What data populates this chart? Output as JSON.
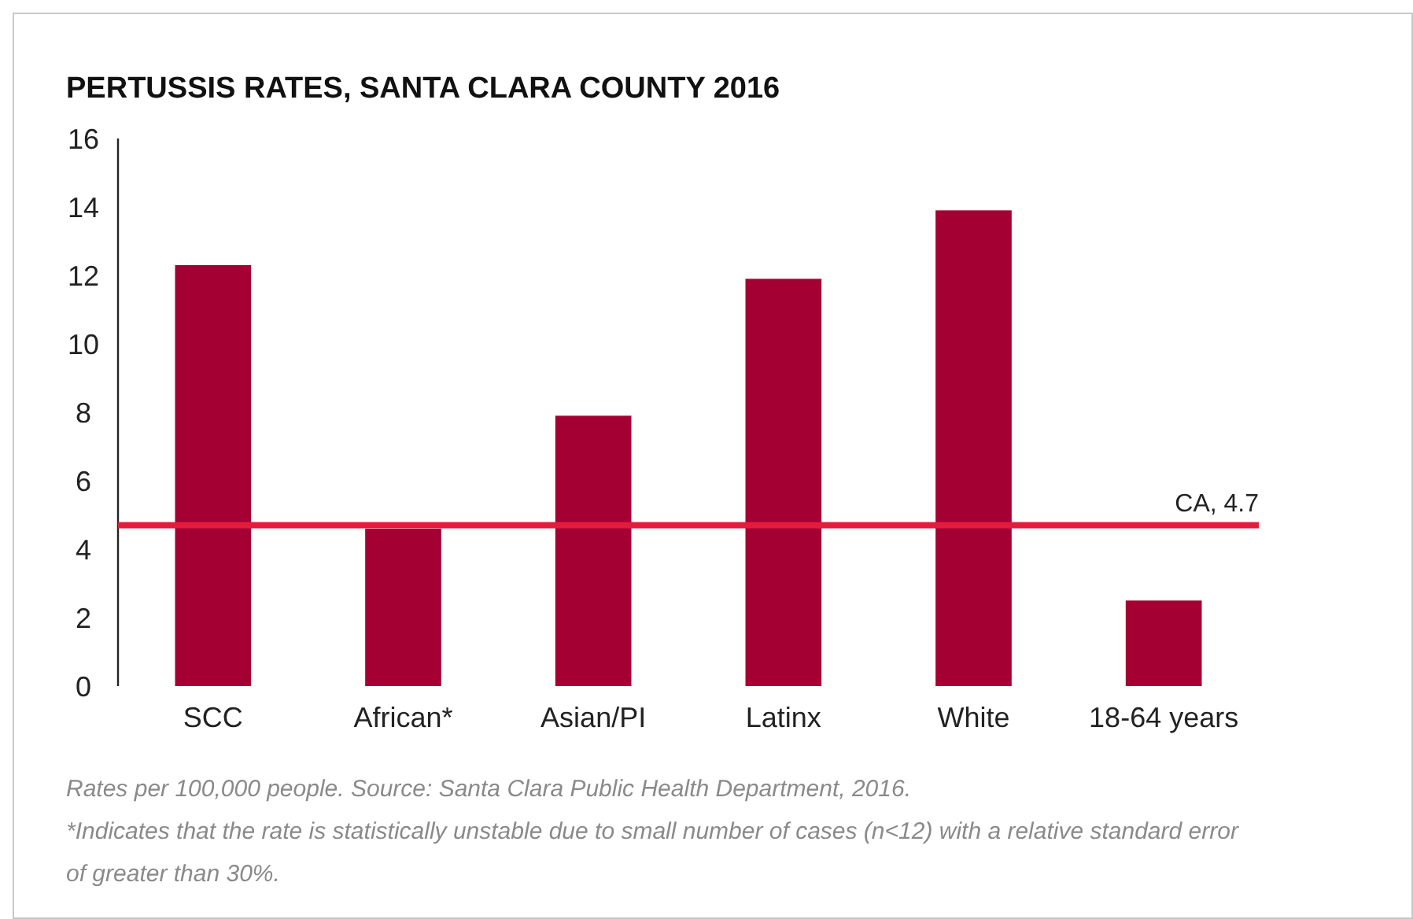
{
  "chart_data": {
    "type": "bar",
    "title": "PERTUSSIS RATES, SANTA CLARA COUNTY 2016",
    "categories": [
      "SCC",
      "African*",
      "Asian/PI",
      "Latinx",
      "White",
      "18-64 years"
    ],
    "values": [
      12.3,
      4.6,
      7.9,
      11.9,
      13.9,
      2.5
    ],
    "color": "#a50034",
    "ylim": [
      0,
      16
    ],
    "yticks": [
      0,
      2,
      4,
      6,
      8,
      10,
      12,
      14,
      16
    ],
    "grid": false,
    "ref_lines": [
      {
        "axis": "y",
        "value": 4.7,
        "label": "CA, 4.7",
        "color": "#e31c3d"
      }
    ],
    "annotations": [
      "Rates per 100,000 people. Source: Santa Clara Public Health Department, 2016.",
      "*Indicates that the rate is statistically unstable due to small number of cases (n<12) with a relative standard error of greater than 30%."
    ]
  }
}
